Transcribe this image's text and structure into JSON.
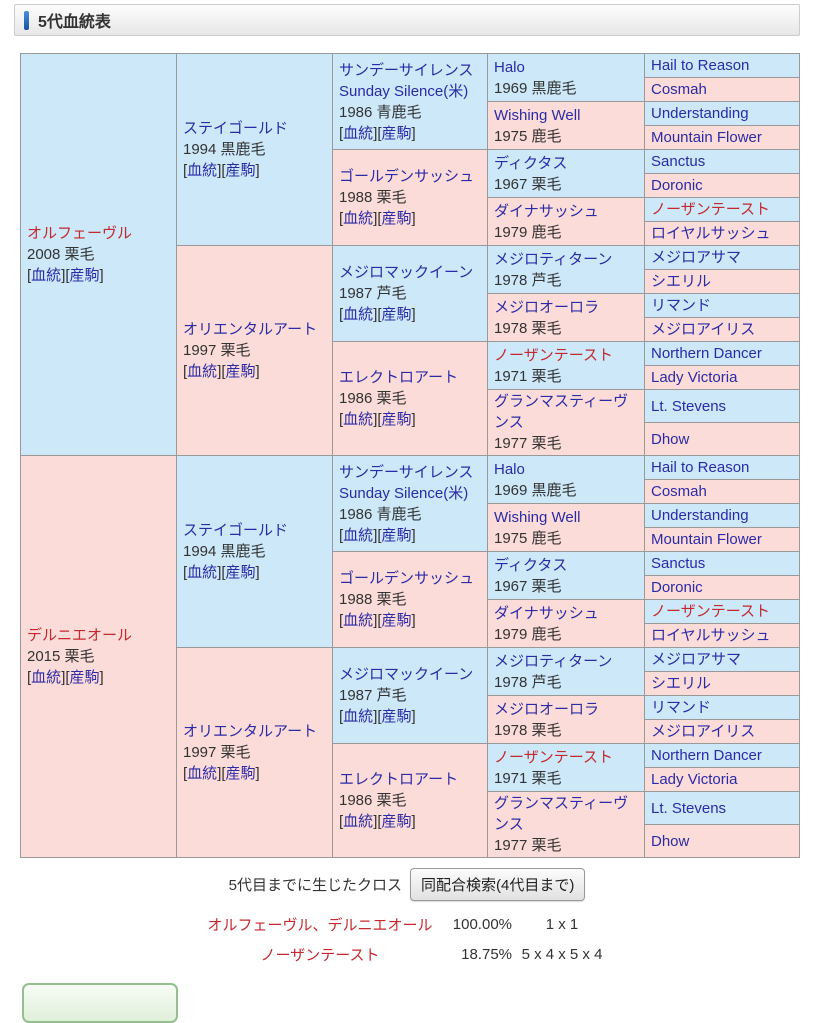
{
  "header": {
    "title": "5代血統表"
  },
  "colors": {
    "male_bg": "#cce8f9",
    "female_bg": "#fcdcd8",
    "link": "#2b2ba8",
    "highlight_red": "#c5282d"
  },
  "pedigree": {
    "link_labels": {
      "bloodline": "血統",
      "offspring": "産駒"
    },
    "columns": [
      [
        {
          "name": "オルフェーヴル",
          "red": true,
          "link": false,
          "info": "2008 栗毛",
          "links": true,
          "sex": "m"
        },
        {
          "name": "デルニエオール",
          "red": true,
          "link": false,
          "info": "2015 栗毛",
          "links": true,
          "sex": "f"
        }
      ],
      [
        {
          "name": "ステイゴールド",
          "info": "1994 黒鹿毛",
          "links": true,
          "sex": "m"
        },
        {
          "name": "オリエンタルアート",
          "info": "1997 栗毛",
          "links": true,
          "sex": "f"
        },
        {
          "name": "ステイゴールド",
          "info": "1994 黒鹿毛",
          "links": true,
          "sex": "m"
        },
        {
          "name": "オリエンタルアート",
          "info": "1997 栗毛",
          "links": true,
          "sex": "f"
        }
      ],
      [
        {
          "name": "サンデーサイレンス",
          "name2": "Sunday Silence(米)",
          "info": "1986 青鹿毛",
          "links": true,
          "sex": "m"
        },
        {
          "name": "ゴールデンサッシュ",
          "info": "1988 栗毛",
          "links": true,
          "sex": "f"
        },
        {
          "name": "メジロマックイーン",
          "info": "1987 芦毛",
          "links": true,
          "sex": "m"
        },
        {
          "name": "エレクトロアート",
          "info": "1986 栗毛",
          "links": true,
          "sex": "f"
        },
        {
          "name": "サンデーサイレンス",
          "name2": "Sunday Silence(米)",
          "info": "1986 青鹿毛",
          "links": true,
          "sex": "m"
        },
        {
          "name": "ゴールデンサッシュ",
          "info": "1988 栗毛",
          "links": true,
          "sex": "f"
        },
        {
          "name": "メジロマックイーン",
          "info": "1987 芦毛",
          "links": true,
          "sex": "m"
        },
        {
          "name": "エレクトロアート",
          "info": "1986 栗毛",
          "links": true,
          "sex": "f"
        }
      ],
      [
        {
          "name": "Halo",
          "info": "1969 黒鹿毛",
          "sex": "m"
        },
        {
          "name": "Wishing Well",
          "info": "1975 鹿毛",
          "sex": "f"
        },
        {
          "name": "ディクタス",
          "info": "1967 栗毛",
          "sex": "m"
        },
        {
          "name": "ダイナサッシュ",
          "info": "1979 鹿毛",
          "sex": "f"
        },
        {
          "name": "メジロティターン",
          "info": "1978 芦毛",
          "sex": "m"
        },
        {
          "name": "メジロオーロラ",
          "info": "1978 栗毛",
          "sex": "f"
        },
        {
          "name": "ノーザンテースト",
          "red": true,
          "info": "1971 栗毛",
          "sex": "m"
        },
        {
          "name": "グランマスティーヴンス",
          "info": "1977 栗毛",
          "sex": "f"
        },
        {
          "name": "Halo",
          "info": "1969 黒鹿毛",
          "sex": "m"
        },
        {
          "name": "Wishing Well",
          "info": "1975 鹿毛",
          "sex": "f"
        },
        {
          "name": "ディクタス",
          "info": "1967 栗毛",
          "sex": "m"
        },
        {
          "name": "ダイナサッシュ",
          "info": "1979 鹿毛",
          "sex": "f"
        },
        {
          "name": "メジロティターン",
          "info": "1978 芦毛",
          "sex": "m"
        },
        {
          "name": "メジロオーロラ",
          "info": "1978 栗毛",
          "sex": "f"
        },
        {
          "name": "ノーザンテースト",
          "red": true,
          "info": "1971 栗毛",
          "sex": "m"
        },
        {
          "name": "グランマスティーヴンス",
          "info": "1977 栗毛",
          "sex": "f"
        }
      ],
      [
        {
          "name": "Hail to Reason",
          "sex": "m"
        },
        {
          "name": "Cosmah",
          "sex": "f"
        },
        {
          "name": "Understanding",
          "sex": "m"
        },
        {
          "name": "Mountain Flower",
          "sex": "f"
        },
        {
          "name": "Sanctus",
          "sex": "m"
        },
        {
          "name": "Doronic",
          "sex": "f"
        },
        {
          "name": "ノーザンテースト",
          "red": true,
          "sex": "m"
        },
        {
          "name": "ロイヤルサッシュ",
          "sex": "f"
        },
        {
          "name": "メジロアサマ",
          "sex": "m"
        },
        {
          "name": "シエリル",
          "sex": "f"
        },
        {
          "name": "リマンド",
          "sex": "m"
        },
        {
          "name": "メジロアイリス",
          "sex": "f"
        },
        {
          "name": "Northern Dancer",
          "sex": "m"
        },
        {
          "name": "Lady Victoria",
          "sex": "f"
        },
        {
          "name": "Lt. Stevens",
          "sex": "m"
        },
        {
          "name": "Dhow",
          "sex": "f"
        },
        {
          "name": "Hail to Reason",
          "sex": "m"
        },
        {
          "name": "Cosmah",
          "sex": "f"
        },
        {
          "name": "Understanding",
          "sex": "m"
        },
        {
          "name": "Mountain Flower",
          "sex": "f"
        },
        {
          "name": "Sanctus",
          "sex": "m"
        },
        {
          "name": "Doronic",
          "sex": "f"
        },
        {
          "name": "ノーザンテースト",
          "red": true,
          "sex": "m"
        },
        {
          "name": "ロイヤルサッシュ",
          "sex": "f"
        },
        {
          "name": "メジロアサマ",
          "sex": "m"
        },
        {
          "name": "シエリル",
          "sex": "f"
        },
        {
          "name": "リマンド",
          "sex": "m"
        },
        {
          "name": "メジロアイリス",
          "sex": "f"
        },
        {
          "name": "Northern Dancer",
          "sex": "m"
        },
        {
          "name": "Lady Victoria",
          "sex": "f"
        },
        {
          "name": "Lt. Stevens",
          "sex": "m"
        },
        {
          "name": "Dhow",
          "sex": "f"
        }
      ]
    ]
  },
  "cross": {
    "caption": "5代目までに生じたクロス",
    "search_button": "同配合検索(4代目まで)",
    "rows": [
      {
        "names": "オルフェーヴル、デルニエオール",
        "pct": "100.00%",
        "cross": "1 x 1"
      },
      {
        "names": "ノーザンテースト",
        "pct": "18.75%",
        "cross": "5 x 4 x 5 x 4"
      }
    ]
  }
}
